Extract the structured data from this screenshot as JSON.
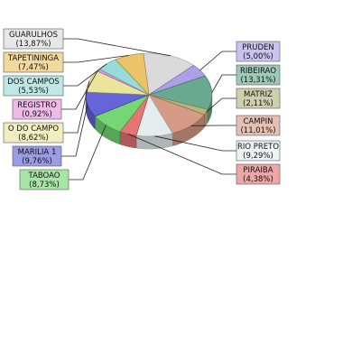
{
  "chart_data": {
    "type": "pie",
    "title": "",
    "legend": "callout-labels",
    "slices": [
      {
        "name": "GUARULHOS",
        "label": "GUARULHOS",
        "pct_text": "(13,87%)",
        "value": 13.87,
        "color": "#d4d4d4"
      },
      {
        "name": "PRUDEN",
        "label": "PRUDEN",
        "pct_text": "(5,00%)",
        "value": 5.0,
        "color": "#9f8fe3"
      },
      {
        "name": "RIBEIRAO",
        "label": "RIBEIRAO",
        "pct_text": "(13,31%)",
        "value": 13.31,
        "color": "#4f9a7b"
      },
      {
        "name": "MATRIZ",
        "label": "MATRIZ",
        "pct_text": "(2,11%)",
        "value": 2.11,
        "color": "#a8a86a"
      },
      {
        "name": "CAMPIN",
        "label": "CAMPIN",
        "pct_text": "(11,01%)",
        "value": 11.01,
        "color": "#cf8a72"
      },
      {
        "name": "RIO PRETO",
        "label": "RIO PRETO",
        "pct_text": "(9,29%)",
        "value": 9.29,
        "color": "#dfe9ea"
      },
      {
        "name": "PIRAIBA",
        "label": "PIRAIBA",
        "pct_text": "(4,38%)",
        "value": 4.38,
        "color": "#e05c5c"
      },
      {
        "name": "TABOAO",
        "label": "TABOAO",
        "pct_text": "(8,73%)",
        "value": 8.73,
        "color": "#5ecf5e"
      },
      {
        "name": "MARILIA 1",
        "label": "MARILIA 1",
        "pct_text": "(9,76%)",
        "value": 9.76,
        "color": "#4a4ad0"
      },
      {
        "name": "O DO CAMPO",
        "label": "O DO CAMPO",
        "pct_text": "(8,62%)",
        "value": 8.62,
        "color": "#e6e08a"
      },
      {
        "name": "REGISTRO",
        "label": "REGISTRO",
        "pct_text": "(0,92%)",
        "value": 0.92,
        "color": "#e27fd6"
      },
      {
        "name": "DOS CAMPOS",
        "label": "DOS CAMPOS",
        "pct_text": "(5,53%)",
        "value": 5.53,
        "color": "#86d6d0"
      },
      {
        "name": "TAPETININGA",
        "label": "TAPETININGA",
        "pct_text": "(7,47%)",
        "value": 7.47,
        "color": "#e8b94e"
      }
    ]
  }
}
